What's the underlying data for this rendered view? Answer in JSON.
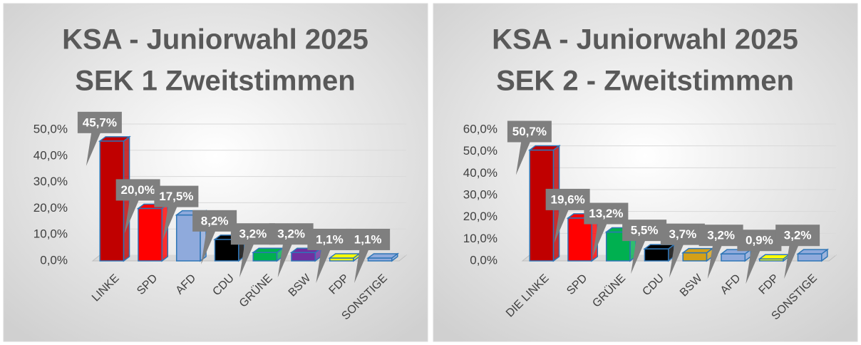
{
  "chart_data": [
    {
      "type": "bar",
      "title": [
        "KSA - Juniorwahl 2025",
        "SEK 1 Zweitstimmen"
      ],
      "categories": [
        "LINKE",
        "SPD",
        "AFD",
        "CDU",
        "GRÜNE",
        "BSW",
        "FDP",
        "SONSTIGE"
      ],
      "values": [
        45.7,
        20.0,
        17.5,
        8.2,
        3.2,
        3.2,
        1.1,
        1.1
      ],
      "value_labels": [
        "45,7%",
        "20,0%",
        "17,5%",
        "8,2%",
        "3,2%",
        "3,2%",
        "1,1%",
        "1,1%"
      ],
      "colors": [
        "#c00000",
        "#ff0000",
        "#8faadc",
        "#000000",
        "#00b050",
        "#7030a0",
        "#ffff00",
        "#8faadc"
      ],
      "ylim": [
        0,
        50
      ],
      "yticks": [
        {
          "value": 0,
          "label": "0,0%"
        },
        {
          "value": 10,
          "label": "10,0%"
        },
        {
          "value": 20,
          "label": "20,0%"
        },
        {
          "value": 30,
          "label": "30,0%"
        },
        {
          "value": 40,
          "label": "40,0%"
        },
        {
          "value": 50,
          "label": "50,0%"
        }
      ],
      "grid": true
    },
    {
      "type": "bar",
      "title": [
        "KSA - Juniorwahl 2025",
        "SEK 2 - Zweitstimmen"
      ],
      "categories": [
        "DIE LINKE",
        "SPD",
        "GRÜNE",
        "CDU",
        "BSW",
        "AFD",
        "FDP",
        "SONSTIGE"
      ],
      "values": [
        50.7,
        19.6,
        13.2,
        5.5,
        3.7,
        3.2,
        0.9,
        3.2
      ],
      "value_labels": [
        "50,7%",
        "19,6%",
        "13,2%",
        "5,5%",
        "3,7%",
        "3,2%",
        "0,9%",
        "3,2%"
      ],
      "colors": [
        "#c00000",
        "#ff0000",
        "#00b050",
        "#000000",
        "#d4a017",
        "#8faadc",
        "#ffff00",
        "#8faadc"
      ],
      "ylim": [
        0,
        60
      ],
      "yticks": [
        {
          "value": 0,
          "label": "0,0%"
        },
        {
          "value": 10,
          "label": "10,0%"
        },
        {
          "value": 20,
          "label": "20,0%"
        },
        {
          "value": 30,
          "label": "30,0%"
        },
        {
          "value": 40,
          "label": "40,0%"
        },
        {
          "value": 50,
          "label": "50,0%"
        },
        {
          "value": 60,
          "label": "60,0%"
        }
      ],
      "grid": true
    }
  ]
}
